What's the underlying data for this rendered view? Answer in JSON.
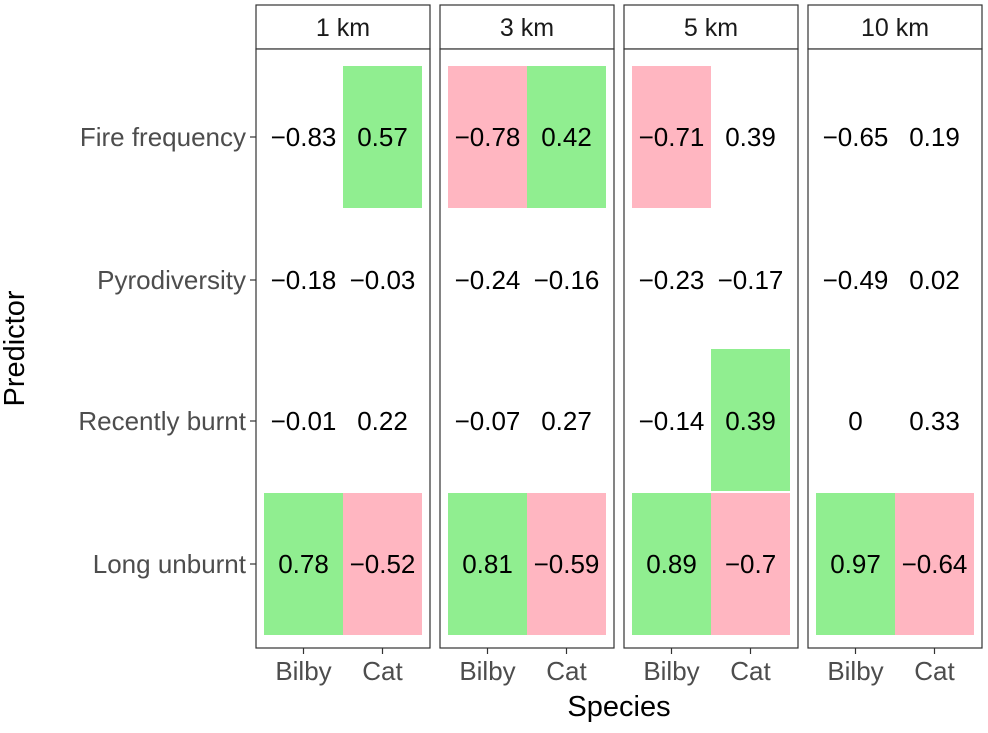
{
  "chart_data": {
    "type": "heatmap",
    "xlabel": "Species",
    "ylabel": "Predictor",
    "species": [
      "Bilby",
      "Cat"
    ],
    "predictors": [
      "Fire frequency",
      "Pyrodiversity",
      "Recently burnt",
      "Long unburnt"
    ],
    "panels": [
      {
        "title": "1 km",
        "values": [
          [
            -0.83,
            0.57
          ],
          [
            -0.18,
            -0.03
          ],
          [
            -0.01,
            0.22
          ],
          [
            0.78,
            -0.52
          ]
        ],
        "labels": [
          [
            "−0.83",
            "0.57"
          ],
          [
            "−0.18",
            "−0.03"
          ],
          [
            "−0.01",
            "0.22"
          ],
          [
            "0.78",
            "−0.52"
          ]
        ],
        "highlight": [
          [
            "none",
            "positive"
          ],
          [
            "none",
            "none"
          ],
          [
            "none",
            "none"
          ],
          [
            "positive",
            "negative"
          ]
        ]
      },
      {
        "title": "3 km",
        "values": [
          [
            -0.78,
            0.42
          ],
          [
            -0.24,
            -0.16
          ],
          [
            -0.07,
            0.27
          ],
          [
            0.81,
            -0.59
          ]
        ],
        "labels": [
          [
            "−0.78",
            "0.42"
          ],
          [
            "−0.24",
            "−0.16"
          ],
          [
            "−0.07",
            "0.27"
          ],
          [
            "0.81",
            "−0.59"
          ]
        ],
        "highlight": [
          [
            "negative",
            "positive"
          ],
          [
            "none",
            "none"
          ],
          [
            "none",
            "none"
          ],
          [
            "positive",
            "negative"
          ]
        ]
      },
      {
        "title": "5 km",
        "values": [
          [
            -0.71,
            0.39
          ],
          [
            -0.23,
            -0.17
          ],
          [
            -0.14,
            0.39
          ],
          [
            0.89,
            -0.7
          ]
        ],
        "labels": [
          [
            "−0.71",
            "0.39"
          ],
          [
            "−0.23",
            "−0.17"
          ],
          [
            "−0.14",
            "0.39"
          ],
          [
            "0.89",
            "−0.7"
          ]
        ],
        "highlight": [
          [
            "negative",
            "none"
          ],
          [
            "none",
            "none"
          ],
          [
            "none",
            "positive"
          ],
          [
            "positive",
            "negative"
          ]
        ]
      },
      {
        "title": "10 km",
        "values": [
          [
            -0.65,
            0.19
          ],
          [
            -0.49,
            0.02
          ],
          [
            0,
            0.33
          ],
          [
            0.97,
            -0.64
          ]
        ],
        "labels": [
          [
            "−0.65",
            "0.19"
          ],
          [
            "−0.49",
            "0.02"
          ],
          [
            "0",
            "0.33"
          ],
          [
            "0.97",
            "−0.64"
          ]
        ],
        "highlight": [
          [
            "none",
            "none"
          ],
          [
            "none",
            "none"
          ],
          [
            "none",
            "none"
          ],
          [
            "positive",
            "negative"
          ]
        ]
      }
    ],
    "colors": {
      "positive": "#90EE90",
      "negative": "#FFB6C1",
      "strip": "#ffffff",
      "border": "#333333"
    },
    "grid": false,
    "legend": "none"
  }
}
